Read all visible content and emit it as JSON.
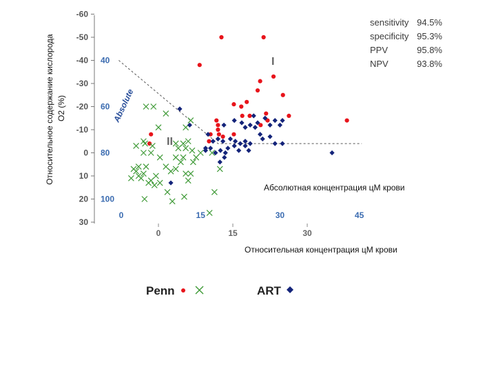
{
  "chart_data": {
    "type": "scatter",
    "title": "",
    "ylabel": "Относительное  содержание кислорода O2 (%)",
    "xlabel": "Относительная концентрация цМ крови",
    "inner_annotation": "Абсолютная концентрация цМ крови",
    "secondary_axis_label": "Absolute",
    "region_labels": [
      "I",
      "II"
    ],
    "y_ticks": [
      "-60",
      "-50",
      "-40",
      "-30",
      "-20",
      "-10",
      "0",
      "10",
      "20",
      "30"
    ],
    "ylim": [
      -60,
      30
    ],
    "y_inverted": true,
    "x_ticks": [
      "0",
      "15",
      "30"
    ],
    "xlim": [
      -8,
      41
    ],
    "absolute_ticks_left": [
      "40",
      "60",
      "80",
      "100"
    ],
    "absolute_ticks_bottom": [
      "0",
      "15",
      "30",
      "45"
    ],
    "stats": [
      {
        "label": "sensitivity",
        "value": "94.5%"
      },
      {
        "label": "specificity",
        "value": "95.3%"
      },
      {
        "label": "PPV",
        "value": "95.8%"
      },
      {
        "label": "NPV",
        "value": "93.8%"
      }
    ],
    "legend": [
      {
        "name": "Penn",
        "symbols": "red dot / green x"
      },
      {
        "name": "ART",
        "symbols": "blue diamond"
      }
    ],
    "colors": {
      "penn_red": "#e8141b",
      "penn_green": "#3f9a37",
      "art_blue": "#14247a"
    },
    "boundary": {
      "style": "dashed",
      "diagonal_from": [
        -8,
        -40
      ],
      "knee": [
        12,
        -4
      ],
      "horizontal_to": [
        41,
        -4
      ]
    },
    "series": [
      {
        "name": "Penn",
        "marker": "red-dot",
        "points": [
          [
            12.7,
            -50
          ],
          [
            21.2,
            -50
          ],
          [
            8.3,
            -38
          ],
          [
            20.5,
            -31
          ],
          [
            23.2,
            -33
          ],
          [
            20,
            -27
          ],
          [
            25.1,
            -25
          ],
          [
            17.8,
            -22
          ],
          [
            15.2,
            -21
          ],
          [
            16.7,
            -20
          ],
          [
            26.3,
            -16
          ],
          [
            16.9,
            -16
          ],
          [
            21.7,
            -17
          ],
          [
            11.7,
            -14
          ],
          [
            22,
            -14
          ],
          [
            12,
            -12
          ],
          [
            12,
            -10
          ],
          [
            20.6,
            -12
          ],
          [
            10.5,
            -8
          ],
          [
            13,
            -7
          ],
          [
            15.2,
            -8
          ],
          [
            -1.5,
            -8
          ],
          [
            10.2,
            -5
          ],
          [
            -1.8,
            -4
          ],
          [
            38,
            -14
          ],
          [
            18.4,
            -16
          ],
          [
            12.2,
            -8
          ]
        ]
      },
      {
        "name": "Penn",
        "marker": "green-x",
        "points": [
          [
            -2.5,
            -20
          ],
          [
            -1,
            -20
          ],
          [
            1.5,
            -17
          ],
          [
            6.5,
            -14
          ],
          [
            0,
            -11
          ],
          [
            5.5,
            -11
          ],
          [
            -3,
            -5
          ],
          [
            -2.7,
            -4
          ],
          [
            -1.2,
            -3
          ],
          [
            3.5,
            -4
          ],
          [
            5,
            -4
          ],
          [
            6,
            -5
          ],
          [
            -4.5,
            -3
          ],
          [
            -3,
            0
          ],
          [
            -1.5,
            0
          ],
          [
            4,
            -2
          ],
          [
            5.5,
            -2
          ],
          [
            6.8,
            -1
          ],
          [
            0.3,
            2
          ],
          [
            3.5,
            2
          ],
          [
            5,
            2
          ],
          [
            7.6,
            2
          ],
          [
            8.5,
            0
          ],
          [
            10.8,
            0
          ],
          [
            -5,
            7
          ],
          [
            -4.5,
            8
          ],
          [
            -4,
            10
          ],
          [
            -3.5,
            11
          ],
          [
            -3,
            9
          ],
          [
            -2.5,
            6
          ],
          [
            -2,
            13
          ],
          [
            -1.5,
            12
          ],
          [
            -0.5,
            10
          ],
          [
            1.5,
            6
          ],
          [
            2.5,
            8
          ],
          [
            3.5,
            7
          ],
          [
            4.5,
            4
          ],
          [
            5.5,
            9
          ],
          [
            6,
            12
          ],
          [
            7,
            4
          ],
          [
            -2.8,
            20
          ],
          [
            -0.8,
            14
          ],
          [
            1.8,
            17
          ],
          [
            2.8,
            21
          ],
          [
            5.2,
            19
          ],
          [
            12.4,
            7
          ],
          [
            11.3,
            17
          ],
          [
            10.3,
            26
          ],
          [
            -5.5,
            11
          ],
          [
            -4,
            6
          ],
          [
            0.3,
            13
          ],
          [
            6.5,
            9
          ]
        ]
      },
      {
        "name": "ART",
        "marker": "blue-diamond",
        "points": [
          [
            4.3,
            -19
          ],
          [
            6.3,
            -12
          ],
          [
            13.2,
            -12
          ],
          [
            15.3,
            -14
          ],
          [
            16.8,
            -13
          ],
          [
            17.5,
            -11
          ],
          [
            18.5,
            -12
          ],
          [
            19.5,
            -11
          ],
          [
            20,
            -13
          ],
          [
            21.5,
            -15
          ],
          [
            22.5,
            -12
          ],
          [
            23.5,
            -14
          ],
          [
            24.5,
            -12
          ],
          [
            25,
            -14
          ],
          [
            10,
            -8
          ],
          [
            11,
            -5
          ],
          [
            12,
            -6
          ],
          [
            13,
            -5
          ],
          [
            14.5,
            -6
          ],
          [
            15.5,
            -5
          ],
          [
            16.5,
            -4
          ],
          [
            17.5,
            -5
          ],
          [
            18.5,
            -4
          ],
          [
            20.5,
            -8
          ],
          [
            21,
            -6
          ],
          [
            22.5,
            -7
          ],
          [
            23.5,
            -4
          ],
          [
            25,
            -4
          ],
          [
            9.5,
            -2
          ],
          [
            10.5,
            -2
          ],
          [
            11.5,
            0
          ],
          [
            12.5,
            -1
          ],
          [
            13.5,
            0
          ],
          [
            14,
            -2
          ],
          [
            15.3,
            -3
          ],
          [
            16.2,
            -1
          ],
          [
            17.5,
            -3
          ],
          [
            18.2,
            -1
          ],
          [
            12.4,
            4
          ],
          [
            13.3,
            2
          ],
          [
            35,
            0
          ],
          [
            2.5,
            13
          ],
          [
            9.5,
            -1
          ],
          [
            19.2,
            -16
          ]
        ]
      }
    ]
  }
}
